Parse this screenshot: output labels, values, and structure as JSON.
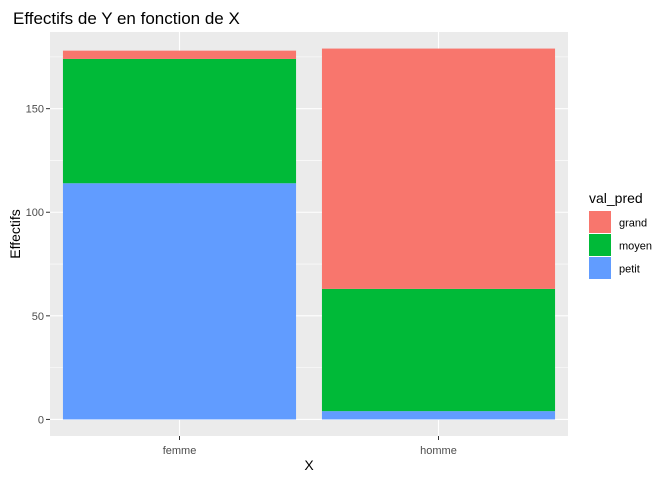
{
  "chart_data": {
    "type": "bar",
    "stacked": true,
    "title": "Effectifs de Y en fonction de X",
    "xlabel": "X",
    "ylabel": "Effectifs",
    "categories": [
      "femme",
      "homme"
    ],
    "series": [
      {
        "name": "grand",
        "color": "#F8766D",
        "values": [
          4,
          116
        ]
      },
      {
        "name": "moyen",
        "color": "#00BA38",
        "values": [
          60,
          59
        ]
      },
      {
        "name": "petit",
        "color": "#619CFF",
        "values": [
          114,
          4
        ]
      }
    ],
    "stack_order_bottom_to_top": [
      "petit",
      "moyen",
      "grand"
    ],
    "ylim": [
      -8,
      187
    ],
    "yticks": [
      0,
      50,
      100,
      150
    ],
    "grid": true,
    "legend": {
      "title": "val_pred",
      "position": "right",
      "items": [
        "grand",
        "moyen",
        "petit"
      ]
    },
    "panel_background": "#EBEBEB",
    "grid_color": "#FFFFFF"
  }
}
